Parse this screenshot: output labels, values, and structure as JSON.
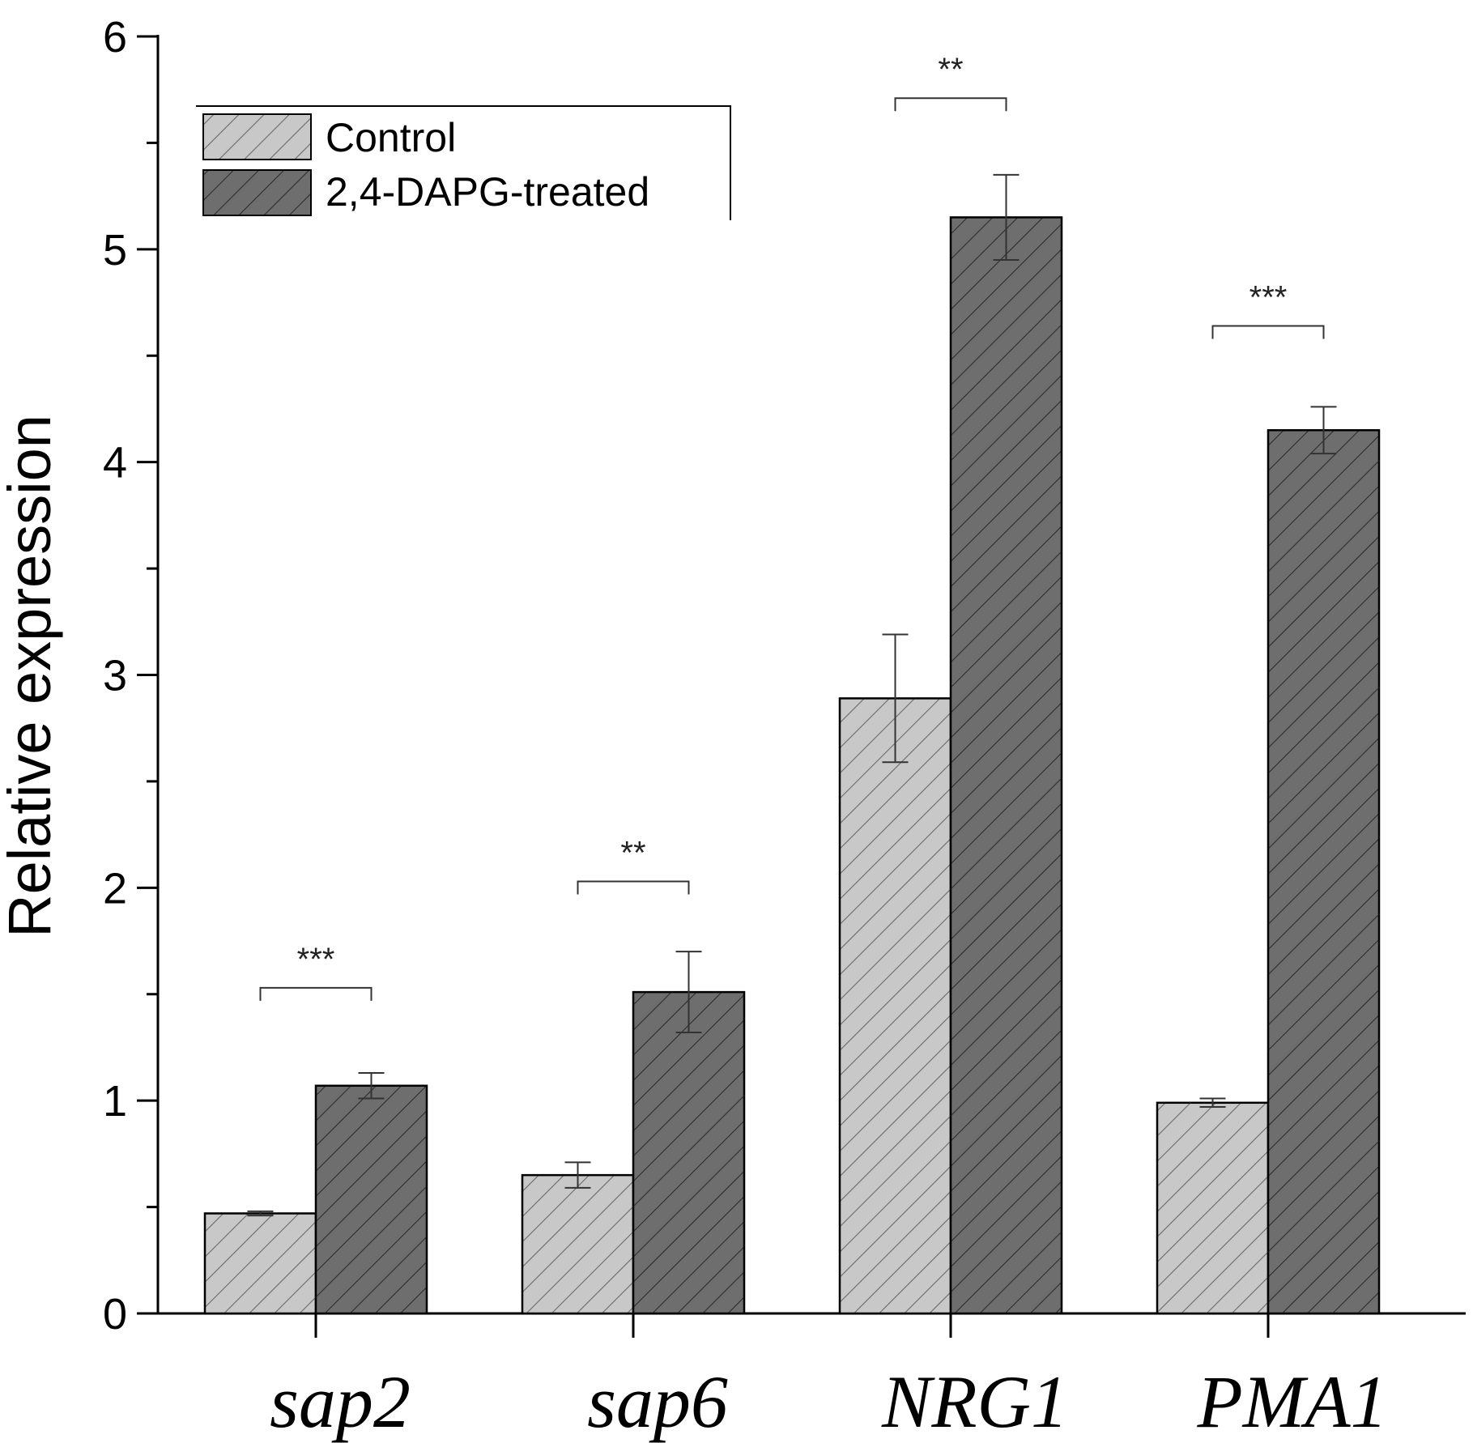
{
  "chart_data": {
    "type": "bar",
    "title": "",
    "xlabel": "",
    "ylabel": "Relative expression",
    "ylim": [
      0,
      6
    ],
    "yticks": [
      "0",
      "1",
      "2",
      "3",
      "4",
      "5",
      "6"
    ],
    "categories": [
      "sap2",
      "sap6",
      "NRG1",
      "PMA1"
    ],
    "series": [
      {
        "name": "Control",
        "color": "#c8c8c8",
        "values": [
          0.47,
          0.65,
          2.89,
          0.99
        ],
        "errors": [
          0.01,
          0.06,
          0.3,
          0.02
        ]
      },
      {
        "name": "2,4-DAPG-treated",
        "color": "#6e6e6e",
        "values": [
          1.07,
          1.51,
          5.15,
          4.15
        ],
        "errors": [
          0.06,
          0.19,
          0.2,
          0.11
        ]
      }
    ],
    "significance": [
      {
        "category": "sap2",
        "label": "***",
        "y": 1.53
      },
      {
        "category": "sap6",
        "label": "**",
        "y": 2.03
      },
      {
        "category": "NRG1",
        "label": "**",
        "y": 5.71
      },
      {
        "category": "PMA1",
        "label": "***",
        "y": 4.64
      }
    ],
    "legend": {
      "position": "top-left",
      "entries": [
        "Control",
        "2,4-DAPG-treated"
      ]
    }
  }
}
